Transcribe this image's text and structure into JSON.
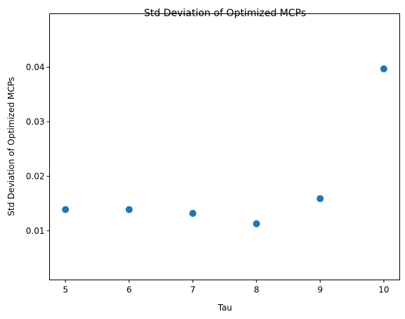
{
  "chart_data": {
    "type": "scatter",
    "title": "Std Deviation of Optimized MCPs",
    "xlabel": "Tau",
    "ylabel": "Std Deviation of Optimized MCPs",
    "x": [
      5,
      6,
      7,
      8,
      9,
      10
    ],
    "y": [
      0.0139,
      0.0139,
      0.0132,
      0.0113,
      0.0159,
      0.0397
    ],
    "xlim": [
      4.75,
      10.25
    ],
    "ylim": [
      0.001,
      0.0498
    ],
    "xticks": [
      5,
      6,
      7,
      8,
      9,
      10
    ],
    "xtick_labels": [
      "5",
      "6",
      "7",
      "8",
      "9",
      "10"
    ],
    "yticks": [
      0.01,
      0.02,
      0.03,
      0.04
    ],
    "ytick_labels": [
      "0.01",
      "0.02",
      "0.03",
      "0.04"
    ],
    "grid": false,
    "marker_color": "#1f77b4"
  }
}
